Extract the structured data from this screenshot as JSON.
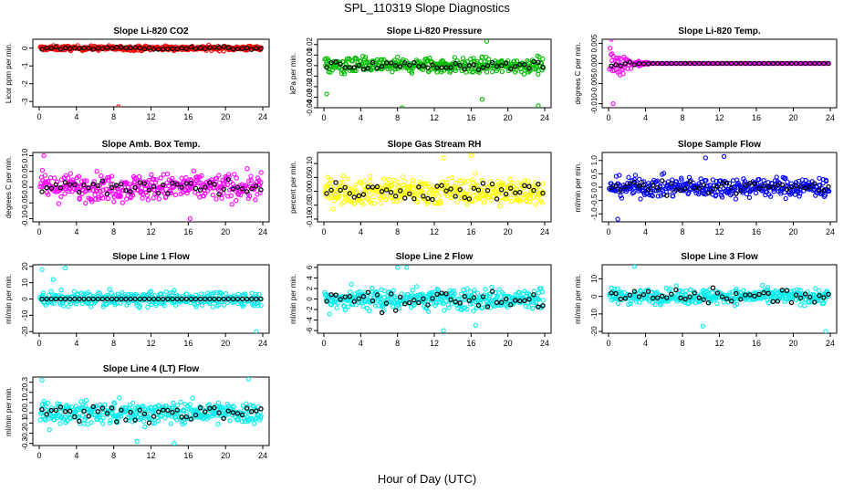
{
  "figure": {
    "title": "SPL_110319  Slope Diagnostics",
    "xlabel": "Hour of Day (UTC)"
  },
  "chart_data": [
    {
      "type": "scatter",
      "title": "Slope Li-820 CO2",
      "ylabel": "Licor ppm per min.",
      "xlim": [
        0,
        24
      ],
      "xticks": [
        0,
        4,
        8,
        12,
        16,
        20,
        24
      ],
      "ylim": [
        -3.3,
        0.5
      ],
      "yticks": [
        0,
        -1,
        -2,
        -3
      ],
      "ytick_labels": [
        "0",
        "-1",
        "-2",
        "-3"
      ],
      "color": "#ff0000",
      "spread": 0.12,
      "outliers": [
        [
          8.5,
          -3.3
        ]
      ],
      "black_spread": 0.08
    },
    {
      "type": "scatter",
      "title": "Slope Li-820 Pressure",
      "ylabel": "kPa per min.",
      "xlim": [
        0,
        24
      ],
      "xticks": [
        0,
        4,
        8,
        12,
        16,
        20,
        24
      ],
      "ylim": [
        -0.04,
        0.025
      ],
      "yticks": [
        0.02,
        0.01,
        0.0,
        -0.01,
        -0.02,
        -0.03,
        -0.04
      ],
      "ytick_labels": [
        "0.02",
        "0.01",
        "0.00",
        "-0.01",
        "-0.02",
        "-0.03",
        "-0.04"
      ],
      "color": "#00bb00",
      "spread": 0.007,
      "outliers": [
        [
          0.3,
          -0.027
        ],
        [
          8.5,
          -0.04
        ],
        [
          17.2,
          -0.032
        ],
        [
          23.3,
          -0.038
        ],
        [
          17.7,
          0.023
        ]
      ],
      "black_spread": 0.004
    },
    {
      "type": "scatter",
      "title": "Slope Li-820 Temp.",
      "ylabel": "degrees C per min.",
      "xlim": [
        0,
        24
      ],
      "xticks": [
        0,
        4,
        8,
        12,
        16,
        20,
        24
      ],
      "ylim": [
        -0.011,
        0.006
      ],
      "yticks": [
        0.005,
        0.0,
        -0.005,
        -0.01
      ],
      "ytick_labels": [
        "0.005",
        "0.000",
        "-0.005",
        "-0.010"
      ],
      "color": "#ff00ff",
      "spread": 0.0,
      "decay": true,
      "outliers": [
        [
          0.5,
          -0.01
        ],
        [
          0.3,
          0.006
        ]
      ],
      "black_spread": 0.0
    },
    {
      "type": "scatter",
      "title": "Slope Amb. Box Temp.",
      "ylabel": "degrees C per min.",
      "xlim": [
        0,
        24
      ],
      "xticks": [
        0,
        4,
        8,
        12,
        16,
        20,
        24
      ],
      "ylim": [
        -0.11,
        0.11
      ],
      "yticks": [
        0.1,
        0.05,
        0.0,
        -0.05,
        -0.1
      ],
      "ytick_labels": [
        "0.10",
        "0.05",
        "0.00",
        "-0.05",
        "-0.10"
      ],
      "color": "#ff00ff",
      "spread": 0.04,
      "outliers": [
        [
          0.5,
          0.1
        ],
        [
          16.2,
          -0.1
        ]
      ],
      "black_spread": 0.03
    },
    {
      "type": "scatter",
      "title": "Slope Gas Stream RH",
      "ylabel": "percent per min.",
      "xlim": [
        0,
        24
      ],
      "xticks": [
        0,
        4,
        8,
        12,
        16,
        20,
        24
      ],
      "ylim": [
        -0.11,
        0.14
      ],
      "yticks": [
        0.1,
        0.05,
        0.0,
        -0.05,
        -0.1
      ],
      "ytick_labels": [
        "0.10",
        "0.05",
        "0.00",
        "-0.05",
        "-0.10"
      ],
      "color": "#ffff00",
      "spread": 0.045,
      "outliers": [
        [
          16,
          0.13
        ],
        [
          13,
          0.12
        ]
      ],
      "black_spread": 0.03
    },
    {
      "type": "scatter",
      "title": "Slope Sample Flow",
      "ylabel": "ml/min per min.",
      "xlim": [
        0,
        24
      ],
      "xticks": [
        0,
        4,
        8,
        12,
        16,
        20,
        24
      ],
      "ylim": [
        -1.3,
        1.3
      ],
      "yticks": [
        1.0,
        0.5,
        0.0,
        -0.5,
        -1.0
      ],
      "ytick_labels": [
        "1.0",
        "0.5",
        "0.0",
        "-0.5",
        "-1.0"
      ],
      "color": "#0000ff",
      "spread": 0.35,
      "outliers": [
        [
          1.0,
          -1.2
        ],
        [
          10.5,
          1.1
        ],
        [
          12.5,
          1.15
        ]
      ],
      "black_spread": 0.2
    },
    {
      "type": "scatter",
      "title": "Slope Line 1 Flow",
      "ylabel": "ml/min per min.",
      "xlim": [
        0,
        24
      ],
      "xticks": [
        0,
        4,
        8,
        12,
        16,
        20,
        24
      ],
      "ylim": [
        -21,
        21
      ],
      "yticks": [
        20,
        10,
        0,
        -10,
        -20
      ],
      "ytick_labels": [
        "20",
        "10",
        "0",
        "-10",
        "-20"
      ],
      "color": "#00eeee",
      "spread": 4.0,
      "outliers": [
        [
          0.3,
          18
        ],
        [
          1.5,
          12
        ],
        [
          2.8,
          19
        ],
        [
          23.3,
          -20
        ]
      ],
      "black_spread": 0.0
    },
    {
      "type": "scatter",
      "title": "Slope Line 2 Flow",
      "ylabel": "ml/min per min.",
      "xlim": [
        0,
        24
      ],
      "xticks": [
        0,
        4,
        8,
        12,
        16,
        20,
        24
      ],
      "ylim": [
        -6.5,
        6.5
      ],
      "yticks": [
        6,
        4,
        2,
        0,
        -2,
        -4,
        -6
      ],
      "ytick_labels": [
        "6",
        "4",
        "2",
        "0",
        "-2",
        "-4",
        "-6"
      ],
      "color": "#00eeee",
      "spread": 2.0,
      "outliers": [
        [
          13,
          -6
        ],
        [
          16.5,
          -5
        ],
        [
          8,
          6
        ],
        [
          9,
          6
        ]
      ],
      "black_spread": 1.8
    },
    {
      "type": "scatter",
      "title": "Slope Line 3 Flow",
      "ylabel": "ml/min per min.",
      "xlim": [
        0,
        24
      ],
      "xticks": [
        0,
        4,
        8,
        12,
        16,
        20,
        24
      ],
      "ylim": [
        -21,
        18
      ],
      "yticks": [
        10,
        0,
        -10,
        -20
      ],
      "ytick_labels": [
        "10",
        "0",
        "-10",
        "-20"
      ],
      "color": "#00eeee",
      "spread": 4.0,
      "outliers": [
        [
          2.8,
          17
        ],
        [
          10.2,
          -17
        ],
        [
          23.5,
          -20
        ]
      ],
      "black_spread": 4.0
    },
    {
      "type": "scatter",
      "title": "Slope Line 4 (LT) Flow",
      "ylabel": "ml/min per min.",
      "xlim": [
        0,
        24
      ],
      "xticks": [
        0,
        4,
        8,
        12,
        16,
        20,
        24
      ],
      "ylim": [
        -0.32,
        0.35
      ],
      "yticks": [
        0.3,
        0.2,
        0.1,
        0.0,
        -0.1,
        -0.2,
        -0.3
      ],
      "ytick_labels": [
        "0.3",
        "0.2",
        "0.1",
        "0.0",
        "-0.1",
        "-0.2",
        "-0.3"
      ],
      "color": "#00eeee",
      "spread": 0.1,
      "outliers": [
        [
          0.3,
          0.32
        ],
        [
          10.5,
          -0.28
        ],
        [
          14.5,
          -0.3
        ],
        [
          22.5,
          0.33
        ]
      ],
      "black_spread": 0.07
    }
  ]
}
